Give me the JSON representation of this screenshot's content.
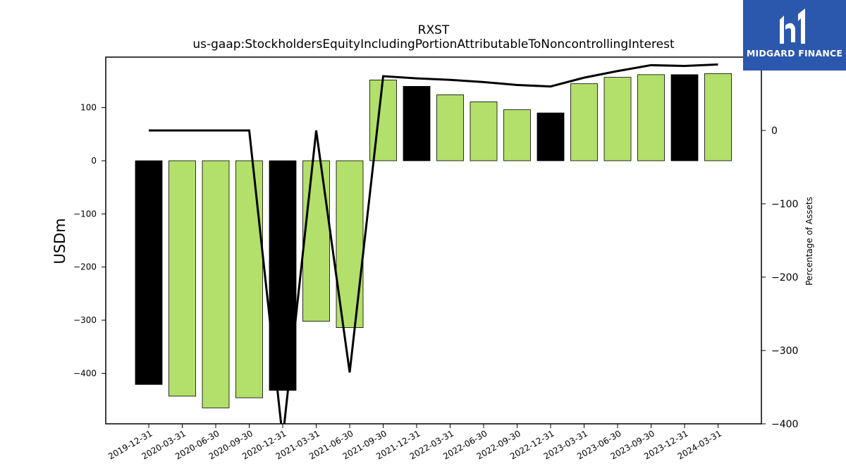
{
  "logo": {
    "text": "MIDGARD FINANCE",
    "icon": "midgard-logo-icon",
    "background": "#2b57ad"
  },
  "chart_data": {
    "type": "bar",
    "title": "RXST",
    "subtitle": "us-gaap:StockholdersEquityIncludingPortionAttributableToNoncontrollingInterest",
    "ylabel": "USDm",
    "y2label": "Percentage of Assets",
    "categories": [
      "2019-12-31",
      "2020-03-31",
      "2020-06-30",
      "2020-09-30",
      "2020-12-31",
      "2021-03-31",
      "2021-06-30",
      "2021-09-30",
      "2021-12-31",
      "2022-03-31",
      "2022-06-30",
      "2022-09-30",
      "2022-12-31",
      "2023-03-31",
      "2023-06-30",
      "2023-09-30",
      "2023-12-31",
      "2024-03-31"
    ],
    "series": [
      {
        "values": [
          -421,
          -443,
          -465,
          -446,
          -432,
          -302,
          -314,
          152,
          140,
          124,
          111,
          96,
          90,
          145,
          157,
          162,
          162,
          164
        ],
        "colors": [
          "#000000",
          "#b3df6b",
          "#b3df6b",
          "#b3df6b",
          "#000000",
          "#b3df6b",
          "#b3df6b",
          "#b3df6b",
          "#000000",
          "#b3df6b",
          "#b3df6b",
          "#b3df6b",
          "#000000",
          "#b3df6b",
          "#b3df6b",
          "#b3df6b",
          "#000000",
          "#b3df6b"
        ]
      },
      {
        "axis": "right",
        "type": "line",
        "color": "#000000",
        "values": [
          0,
          0,
          0,
          0,
          -420,
          0,
          -330,
          74,
          71,
          69,
          66,
          62,
          60,
          72,
          81,
          89,
          88,
          90
        ]
      }
    ],
    "ylim": [
      -495,
      195
    ],
    "y2lim": [
      -400,
      100
    ],
    "yticks": [
      100,
      0,
      -100,
      -200,
      -300,
      -400
    ],
    "y2ticks": [
      0,
      -100,
      -200,
      -300,
      -400
    ],
    "grid": false
  }
}
